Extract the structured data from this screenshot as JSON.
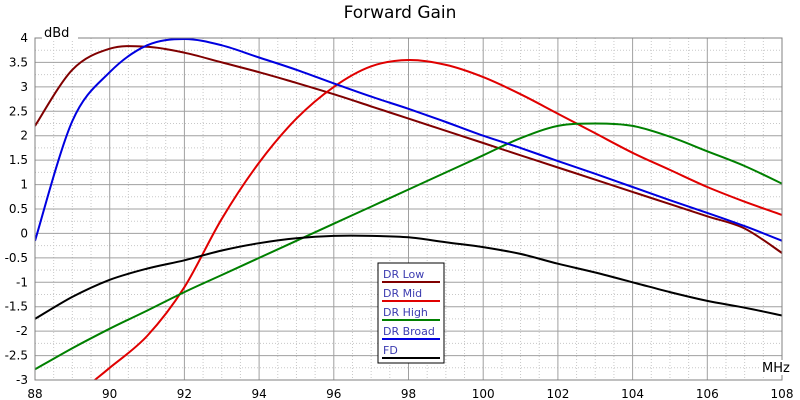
{
  "chart_data": {
    "type": "line",
    "title": "Forward Gain",
    "ylabel": "dBd",
    "xlabel": "MHz",
    "xlim": [
      88,
      108
    ],
    "ylim": [
      -3,
      4
    ],
    "x_ticks": [
      "88",
      "90",
      "92",
      "94",
      "96",
      "98",
      "100",
      "102",
      "104",
      "106",
      "108"
    ],
    "y_ticks": [
      "-3",
      "-2.5",
      "-2",
      "-1.5",
      "-1",
      "-0.5",
      "0",
      "0.5",
      "1",
      "1.5",
      "2",
      "2.5",
      "3",
      "3.5",
      "4"
    ],
    "grid": true,
    "legend_position": "bottom-center",
    "series": [
      {
        "name": "DR Low",
        "color": "#800000",
        "x": [
          88,
          89,
          90,
          91,
          92,
          93,
          94,
          95,
          96,
          97,
          98,
          99,
          100,
          101,
          102,
          103,
          104,
          105,
          106,
          107,
          108
        ],
        "y": [
          2.2,
          3.35,
          3.78,
          3.82,
          3.7,
          3.5,
          3.3,
          3.08,
          2.85,
          2.6,
          2.35,
          2.1,
          1.85,
          1.6,
          1.35,
          1.1,
          0.85,
          0.6,
          0.35,
          0.1,
          -0.4
        ]
      },
      {
        "name": "DR Mid",
        "color": "#e00000",
        "x": [
          89.6,
          90,
          91,
          92,
          93,
          94,
          95,
          96,
          97,
          98,
          99,
          100,
          101,
          102,
          103,
          104,
          105,
          106,
          107,
          108
        ],
        "y": [
          -3.0,
          -2.75,
          -2.1,
          -1.1,
          0.3,
          1.45,
          2.35,
          3.0,
          3.42,
          3.55,
          3.45,
          3.2,
          2.85,
          2.45,
          2.05,
          1.65,
          1.3,
          0.95,
          0.65,
          0.38
        ]
      },
      {
        "name": "DR High",
        "color": "#008000",
        "x": [
          88,
          89,
          90,
          91,
          92,
          93,
          94,
          95,
          96,
          97,
          98,
          99,
          100,
          101,
          102,
          103,
          104,
          105,
          106,
          107,
          108
        ],
        "y": [
          -2.78,
          -2.35,
          -1.95,
          -1.58,
          -1.2,
          -0.85,
          -0.5,
          -0.15,
          0.2,
          0.55,
          0.9,
          1.25,
          1.6,
          1.95,
          2.2,
          2.25,
          2.2,
          1.98,
          1.68,
          1.38,
          1.02
        ]
      },
      {
        "name": "DR Broad",
        "color": "#0000e0",
        "x": [
          88,
          89,
          90,
          91,
          92,
          93,
          94,
          95,
          96,
          97,
          98,
          99,
          100,
          101,
          102,
          103,
          104,
          105,
          106,
          107,
          108
        ],
        "y": [
          -0.15,
          2.3,
          3.3,
          3.85,
          3.98,
          3.85,
          3.6,
          3.35,
          3.07,
          2.8,
          2.55,
          2.28,
          2.0,
          1.75,
          1.48,
          1.22,
          0.95,
          0.68,
          0.42,
          0.15,
          -0.15
        ]
      },
      {
        "name": "FD",
        "color": "#000000",
        "x": [
          88,
          89,
          90,
          91,
          92,
          93,
          94,
          95,
          96,
          97,
          98,
          99,
          100,
          101,
          102,
          103,
          104,
          105,
          106,
          107,
          108
        ],
        "y": [
          -1.75,
          -1.3,
          -0.95,
          -0.72,
          -0.55,
          -0.35,
          -0.2,
          -0.1,
          -0.05,
          -0.05,
          -0.08,
          -0.18,
          -0.28,
          -0.42,
          -0.62,
          -0.8,
          -1.0,
          -1.2,
          -1.38,
          -1.52,
          -1.68
        ]
      }
    ]
  }
}
